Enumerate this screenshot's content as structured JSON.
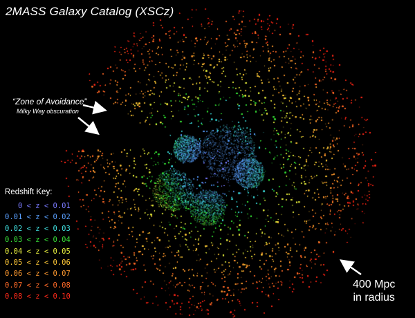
{
  "title": "2MASS Galaxy Catalog (XSCz)",
  "zone_of_avoidance": {
    "title": "“Zone of Avoidance”",
    "subtitle": "Milky Way obscuration"
  },
  "radius_label": {
    "line1": "400 Mpc",
    "line2": "in radius"
  },
  "redshift_key": {
    "title": "Redshift Key:",
    "items": [
      {
        "label": "   0 < z < 0.01",
        "color": "#7a7aff"
      },
      {
        "label": "0.01 < z < 0.02",
        "color": "#5aa0ff"
      },
      {
        "label": "0.02 < z < 0.03",
        "color": "#40e0e0"
      },
      {
        "label": "0.03 < z < 0.04",
        "color": "#38e038"
      },
      {
        "label": "0.04 < z < 0.05",
        "color": "#e8f040"
      },
      {
        "label": "0.05 < z < 0.06",
        "color": "#ffc838"
      },
      {
        "label": "0.06 < z < 0.07",
        "color": "#ff9a30"
      },
      {
        "label": "0.07 < z < 0.08",
        "color": "#ff6a28"
      },
      {
        "label": "0.08 < z < 0.10",
        "color": "#ff2a1a"
      }
    ]
  }
}
